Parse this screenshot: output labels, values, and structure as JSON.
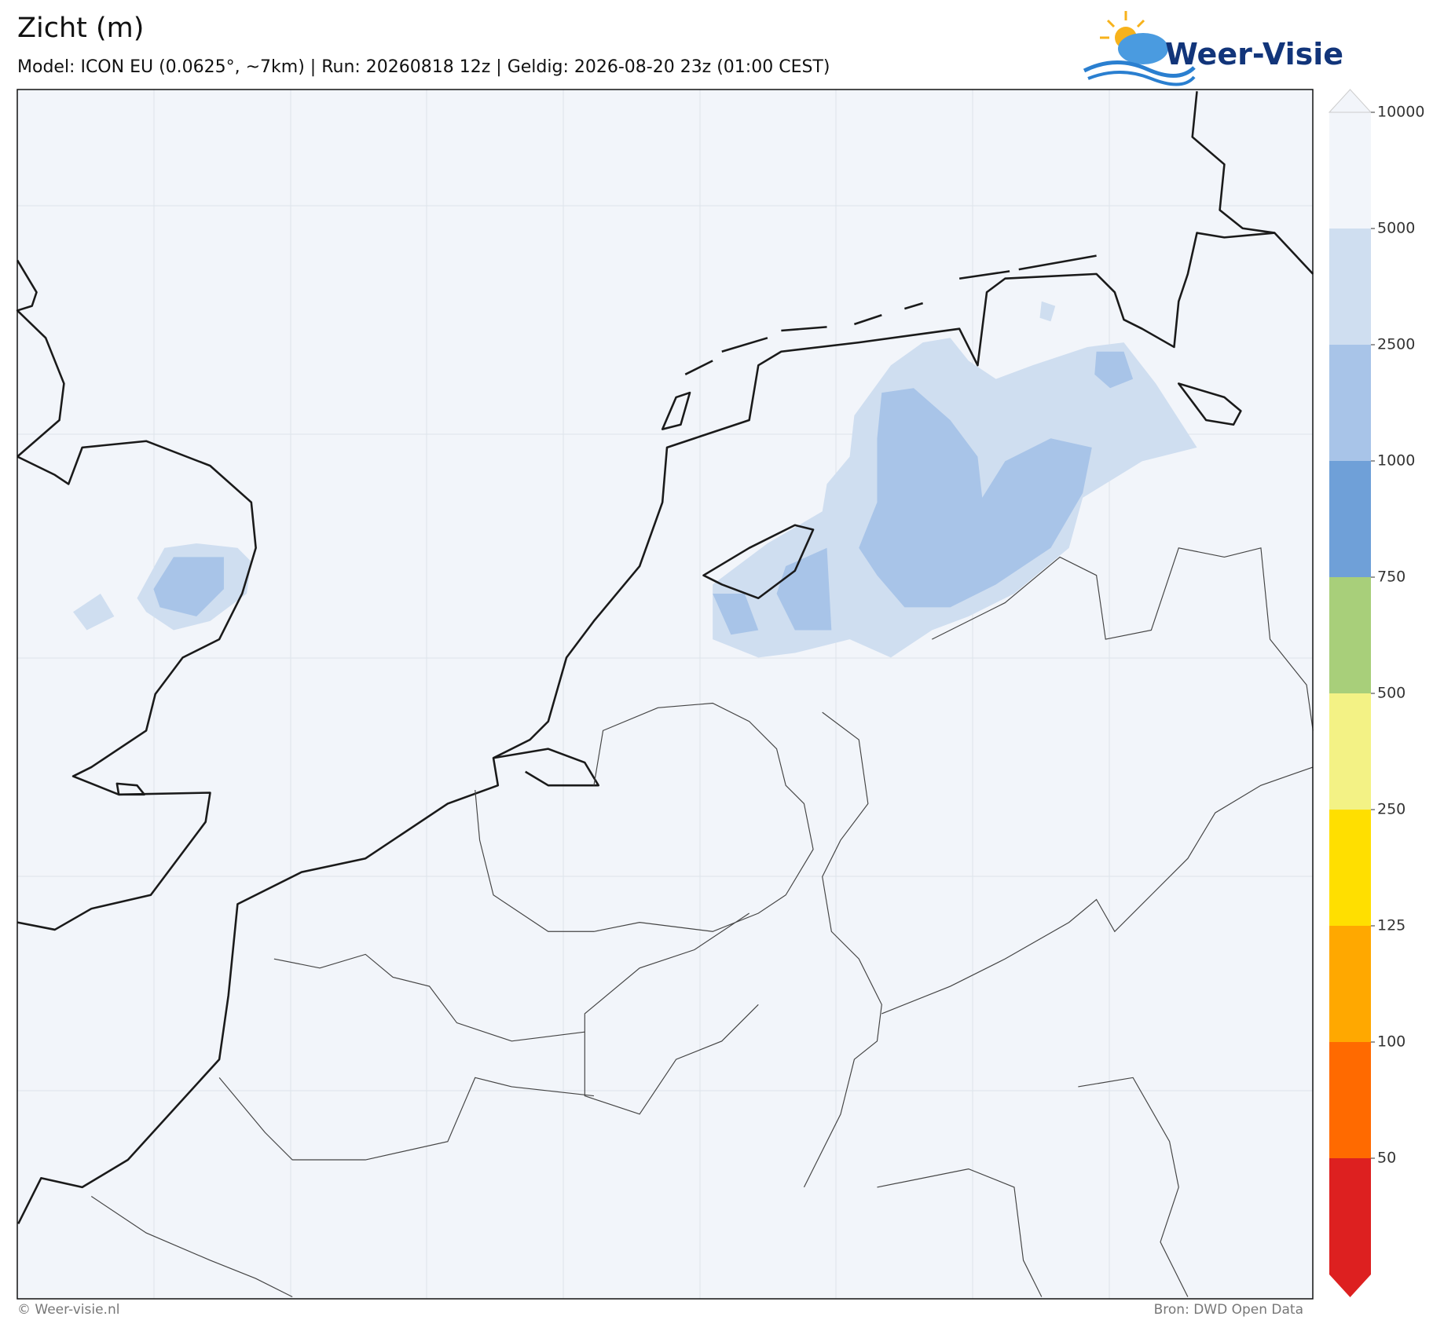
{
  "header": {
    "title": "Zicht (m)",
    "subtitle": "Model: ICON EU (0.0625°, ~7km)  |  Run: 20260818 12z  |  Geldig: 2026-08-20 23z (01:00 CEST)",
    "logo": "Weer-Visie"
  },
  "colorbar": {
    "levels": [
      10000,
      5000,
      2500,
      1000,
      750,
      500,
      250,
      125,
      100,
      50
    ],
    "colors": [
      "#f2f5fa",
      "#cfdef0",
      "#a8c4e8",
      "#6fa0d8",
      "#a8cf7a",
      "#f3f285",
      "#ffdf00",
      "#ffa800",
      "#ff6a00",
      "#dd2020"
    ]
  },
  "footer": {
    "left": "© Weer-visie.nl",
    "right": "Bron: DWD Open Data"
  }
}
